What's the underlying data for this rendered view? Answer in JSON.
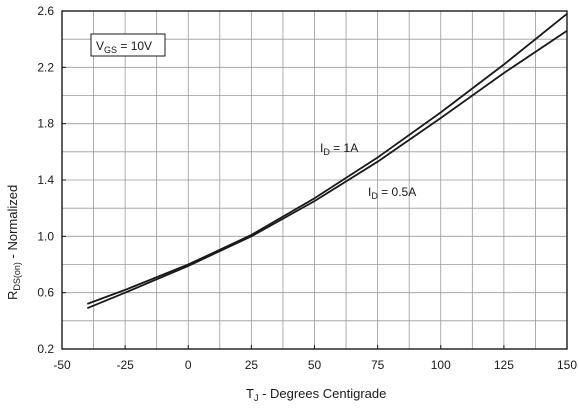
{
  "chart_data": {
    "type": "line",
    "xlabel": {
      "main": "T",
      "sub": "J",
      "rest": " - Degrees Centigrade"
    },
    "ylabel": {
      "main": "R",
      "sub": "DS(on)",
      "rest": " - Normalized"
    },
    "xlim": [
      -50,
      150
    ],
    "ylim": [
      0.2,
      2.6
    ],
    "x_ticks": [
      -50,
      -25,
      0,
      25,
      50,
      75,
      100,
      125,
      150
    ],
    "x_tick_labels": [
      "-50",
      "-25",
      "0",
      "25",
      "50",
      "75",
      "100",
      "125",
      "150"
    ],
    "y_ticks": [
      0.2,
      0.6,
      1.0,
      1.4,
      1.8,
      2.2,
      2.6
    ],
    "y_tick_labels": [
      "0.2",
      "0.6",
      "1.0",
      "1.4",
      "1.8",
      "2.2",
      "2.6"
    ],
    "x_minor_step": 12.5,
    "y_minor_step": 0.2,
    "grid": true,
    "condition_box": {
      "main": "V",
      "sub": "GS",
      "rest": " = 10V"
    },
    "series": [
      {
        "name": "ID = 1A",
        "label": {
          "main": "I",
          "sub": "D",
          "rest": " = 1A"
        },
        "x": [
          -40,
          -25,
          0,
          25,
          50,
          75,
          100,
          125,
          150
        ],
        "y": [
          0.52,
          0.62,
          0.8,
          1.01,
          1.27,
          1.56,
          1.88,
          2.22,
          2.58
        ]
      },
      {
        "name": "ID = 0.5A",
        "label": {
          "main": "I",
          "sub": "D",
          "rest": " = 0.5A"
        },
        "x": [
          -40,
          -25,
          0,
          25,
          50,
          75,
          100,
          125,
          150
        ],
        "y": [
          0.49,
          0.6,
          0.79,
          1.0,
          1.25,
          1.53,
          1.84,
          2.16,
          2.46
        ]
      }
    ],
    "colors": {
      "line": "#1a1a1a",
      "grid": "#9a9a9a",
      "background": "#ffffff"
    }
  }
}
